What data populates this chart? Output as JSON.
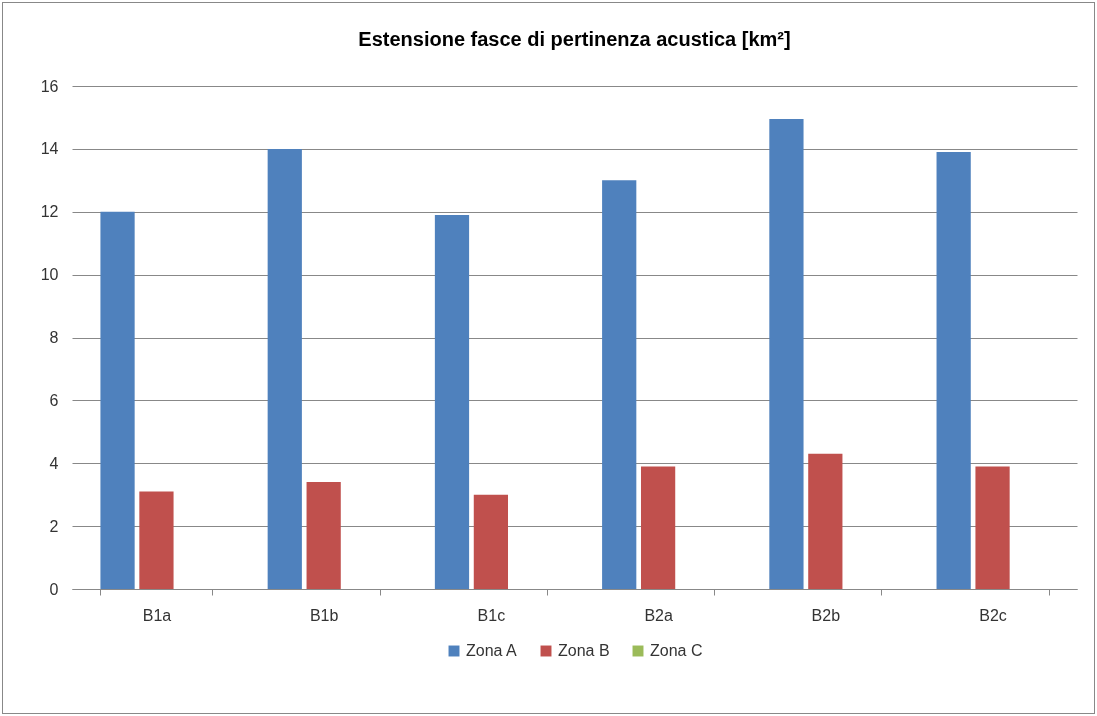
{
  "chart_data": {
    "type": "bar",
    "title": "Estensione fasce di pertinenza acustica [km²]",
    "categories": [
      "B1a",
      "B1b",
      "B1c",
      "B2a",
      "B2b",
      "B2c"
    ],
    "series": [
      {
        "name": "Zona A",
        "color": "#4f81bd",
        "values": [
          12.0,
          14.0,
          11.9,
          13.0,
          14.95,
          13.9
        ]
      },
      {
        "name": "Zona B",
        "color": "#c0504d",
        "values": [
          3.1,
          3.4,
          3.0,
          3.9,
          4.3,
          3.9
        ]
      },
      {
        "name": "Zona C",
        "color": "#9bbb59",
        "values": [
          0,
          0,
          0,
          0,
          0,
          0
        ]
      }
    ],
    "ylim": [
      0,
      16
    ],
    "yticks": [
      0,
      2,
      4,
      6,
      8,
      10,
      12,
      14,
      16
    ],
    "grid": "y",
    "legend": "bottom"
  }
}
